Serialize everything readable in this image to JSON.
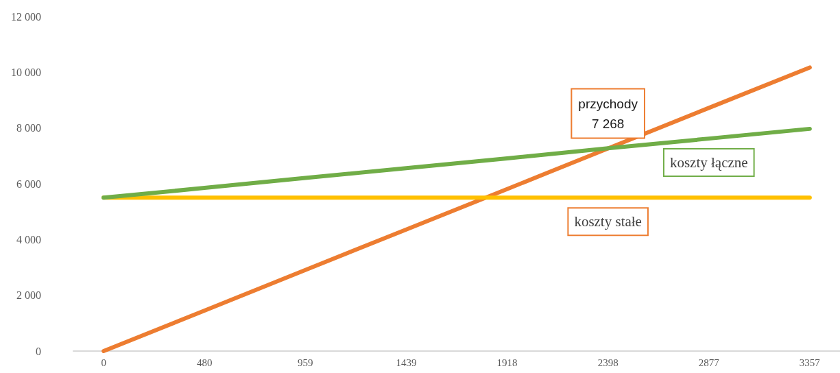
{
  "chart_data": {
    "type": "line",
    "categories": [
      "0",
      "480",
      "959",
      "1439",
      "1918",
      "2398",
      "2877",
      "3357"
    ],
    "ylim": [
      0,
      12000
    ],
    "yticks": [
      0,
      {
        "value": 2000,
        "label": "2 000"
      },
      {
        "value": 4000,
        "label": "4 000"
      },
      {
        "value": 6000,
        "label": "6 000"
      },
      {
        "value": 8000,
        "label": "8 000"
      },
      {
        "value": 10000,
        "label": "10 000"
      },
      {
        "value": 12000,
        "label": "12 000"
      }
    ],
    "series": [
      {
        "name": "przychody",
        "color": "#ed7d31",
        "values": [
          0,
          1450,
          2910,
          4360,
          5810,
          7268,
          8720,
          10170
        ],
        "value_labels": [
          null,
          null,
          null,
          null,
          null,
          "7 268",
          null,
          null
        ]
      },
      {
        "name": "koszty stałe",
        "color": "#ffc000",
        "values": [
          5500,
          5500,
          5500,
          5500,
          5500,
          5500,
          5500,
          5500
        ]
      },
      {
        "name": "koszty łączne",
        "color": "#70ad47",
        "values": [
          5500,
          5850,
          6210,
          6560,
          6910,
          7270,
          7620,
          7970
        ]
      }
    ]
  }
}
